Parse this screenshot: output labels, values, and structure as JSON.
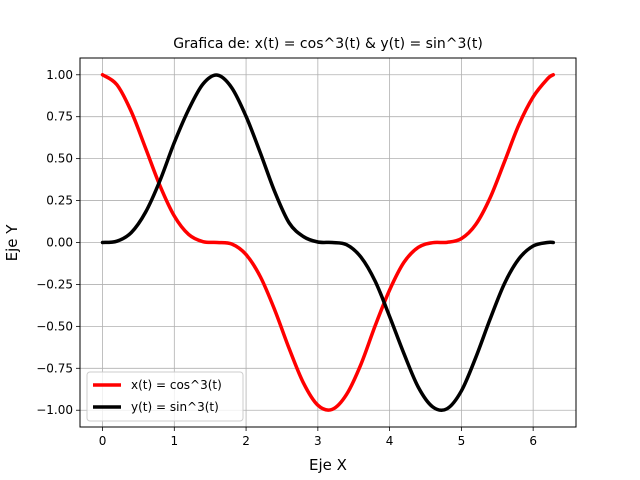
{
  "chart_data": {
    "type": "line",
    "title": "Grafica de: x(t) = cos^3(t) & y(t) = sin^3(t)",
    "xlabel": "Eje X",
    "ylabel": "Eje Y",
    "xlim": [
      -0.314,
      6.597
    ],
    "ylim": [
      -1.1,
      1.1
    ],
    "grid": true,
    "legend_position": "lower-left",
    "xticks": [
      0,
      1,
      2,
      3,
      4,
      5,
      6
    ],
    "xtick_labels": [
      "0",
      "1",
      "2",
      "3",
      "4",
      "5",
      "6"
    ],
    "yticks": [
      1.0,
      0.75,
      0.5,
      0.25,
      0.0,
      -0.25,
      -0.5,
      -0.75,
      -1.0
    ],
    "ytick_labels": [
      "1.00",
      "0.75",
      "0.50",
      "0.25",
      "0.00",
      "−0.25",
      "−0.50",
      "−0.75",
      "−1.00"
    ],
    "x": [
      0.0,
      0.2,
      0.4,
      0.6,
      0.8,
      1.0,
      1.2,
      1.4,
      1.6,
      1.8,
      2.0,
      2.2,
      2.4,
      2.6,
      2.8,
      3.0,
      3.2,
      3.4,
      3.6,
      3.8,
      4.0,
      4.2,
      4.4,
      4.6,
      4.8,
      5.0,
      5.2,
      5.4,
      5.6,
      5.8,
      6.0,
      6.2,
      6.28
    ],
    "series": [
      {
        "name": "x(t) = cos^3(t)",
        "color": "#ff0000",
        "values": [
          1.0,
          0.941,
          0.781,
          0.562,
          0.339,
          0.158,
          0.048,
          0.005,
          0.0,
          -0.009,
          -0.072,
          -0.205,
          -0.403,
          -0.632,
          -0.838,
          -0.97,
          -0.995,
          -0.906,
          -0.727,
          -0.495,
          -0.283,
          -0.118,
          -0.029,
          -0.001,
          0.001,
          0.023,
          0.107,
          0.266,
          0.481,
          0.701,
          0.868,
          0.976,
          1.0
        ]
      },
      {
        "name": "y(t) = sin^3(t)",
        "color": "#000000",
        "values": [
          0.0,
          0.008,
          0.059,
          0.181,
          0.369,
          0.596,
          0.793,
          0.945,
          0.998,
          0.923,
          0.752,
          0.533,
          0.302,
          0.117,
          0.035,
          0.003,
          -0.0,
          -0.013,
          -0.087,
          -0.232,
          -0.441,
          -0.663,
          -0.863,
          -0.98,
          -0.991,
          -0.885,
          -0.686,
          -0.457,
          -0.245,
          -0.098,
          -0.021,
          -0.0,
          -0.0
        ]
      }
    ]
  }
}
